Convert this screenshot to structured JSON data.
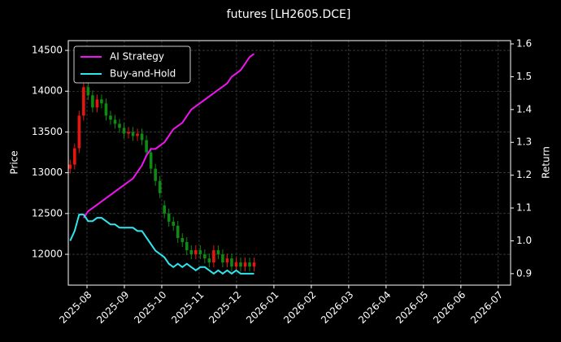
{
  "chart_data": {
    "type": "candlestick",
    "title": "futures [LH2605.DCE]",
    "ylabel": "Price",
    "y2label": "Return",
    "x": [
      -0.45,
      -0.33,
      -0.21,
      -0.09,
      0.03,
      0.15,
      0.27,
      0.39,
      0.51,
      0.63,
      0.75,
      0.87,
      0.99,
      1.11,
      1.23,
      1.35,
      1.47,
      1.59,
      1.71,
      1.83,
      1.95,
      2.07,
      2.19,
      2.31,
      2.43,
      2.55,
      2.67,
      2.79,
      2.91,
      3.03,
      3.15,
      3.27,
      3.39,
      3.51,
      3.63,
      3.75,
      3.87,
      3.99,
      4.11,
      4.23,
      4.35,
      4.47
    ],
    "open": [
      13050,
      13100,
      13300,
      13700,
      14050,
      13950,
      13800,
      13900,
      13850,
      13700,
      13650,
      13600,
      13550,
      13480,
      13500,
      13450,
      13480,
      13400,
      13250,
      13050,
      12900,
      12600,
      12500,
      12400,
      12350,
      12200,
      12150,
      12050,
      12000,
      12050,
      12000,
      11950,
      11900,
      12050,
      12000,
      11900,
      11950,
      11850,
      11900,
      11850,
      11900,
      11850
    ],
    "high": [
      13160,
      13360,
      13760,
      14110,
      14110,
      14010,
      13960,
      13960,
      13910,
      13760,
      13710,
      13660,
      13610,
      13560,
      13560,
      13540,
      13540,
      13460,
      13310,
      13110,
      12960,
      12660,
      12560,
      12460,
      12410,
      12260,
      12210,
      12110,
      12110,
      12110,
      12060,
      12010,
      12110,
      12110,
      12060,
      12010,
      12010,
      11960,
      11960,
      11960,
      11960,
      11960
    ],
    "low": [
      12990,
      13040,
      13240,
      13640,
      13890,
      13740,
      13740,
      13790,
      13640,
      13590,
      13540,
      13490,
      13420,
      13420,
      13390,
      13390,
      13340,
      13190,
      12990,
      12840,
      12690,
      12440,
      12340,
      12290,
      12140,
      12090,
      11990,
      11940,
      11940,
      11940,
      11890,
      11840,
      11840,
      11940,
      11840,
      11840,
      11790,
      11790,
      11790,
      11790,
      11790,
      11790
    ],
    "close": [
      13100,
      13300,
      13700,
      14050,
      13950,
      13800,
      13900,
      13850,
      13700,
      13650,
      13600,
      13550,
      13480,
      13500,
      13450,
      13480,
      13400,
      13250,
      13050,
      12900,
      12750,
      12500,
      12400,
      12350,
      12200,
      12150,
      12050,
      12000,
      12050,
      12000,
      11950,
      11900,
      12050,
      12000,
      11900,
      11950,
      11850,
      11900,
      11850,
      11900,
      11850,
      11900
    ],
    "up_color": "#e8150f",
    "down_color": "#0f8a12",
    "series": [
      {
        "name": "AI Strategy",
        "color": "#f014f0",
        "axis": "y2",
        "values": [
          null,
          null,
          null,
          1.07,
          1.09,
          1.1,
          1.11,
          1.12,
          1.13,
          1.14,
          1.15,
          1.16,
          1.17,
          1.18,
          1.19,
          1.21,
          1.23,
          1.26,
          1.28,
          1.28,
          1.29,
          1.3,
          1.32,
          1.34,
          1.35,
          1.36,
          1.38,
          1.4,
          1.41,
          1.42,
          1.43,
          1.44,
          1.45,
          1.46,
          1.47,
          1.48,
          1.5,
          1.51,
          1.52,
          1.54,
          1.56,
          1.57
        ]
      },
      {
        "name": "Buy-and-Hold",
        "color": "#2ee6f0",
        "axis": "y2",
        "values": [
          1.0,
          1.03,
          1.08,
          1.08,
          1.06,
          1.06,
          1.07,
          1.07,
          1.06,
          1.05,
          1.05,
          1.04,
          1.04,
          1.04,
          1.04,
          1.03,
          1.03,
          1.01,
          0.99,
          0.97,
          0.96,
          0.95,
          0.93,
          0.92,
          0.93,
          0.92,
          0.93,
          0.92,
          0.91,
          0.92,
          0.92,
          0.91,
          0.9,
          0.91,
          0.9,
          0.91,
          0.9,
          0.91,
          0.9,
          0.9,
          0.9,
          0.9
        ]
      }
    ],
    "xlim": [
      -0.5,
      11.33
    ],
    "xticks": [
      {
        "value": 0,
        "label": "2025-08"
      },
      {
        "value": 1,
        "label": "2025-09"
      },
      {
        "value": 2,
        "label": "2025-10"
      },
      {
        "value": 3,
        "label": "2025-11"
      },
      {
        "value": 4,
        "label": "2025-12"
      },
      {
        "value": 5,
        "label": "2026-01"
      },
      {
        "value": 6,
        "label": "2026-02"
      },
      {
        "value": 7,
        "label": "2026-03"
      },
      {
        "value": 8,
        "label": "2026-04"
      },
      {
        "value": 9,
        "label": "2026-05"
      },
      {
        "value": 10,
        "label": "2026-06"
      },
      {
        "value": 11,
        "label": "2026-07"
      }
    ],
    "ylim": [
      11622,
      14620
    ],
    "yticks": [
      12000,
      12500,
      13000,
      13500,
      14000,
      14500
    ],
    "y2lim": [
      0.865,
      1.61
    ],
    "y2ticks": [
      0.9,
      {
        "value": 1,
        "label": "1.0"
      },
      1.1,
      1.2,
      1.3,
      1.4,
      1.5,
      1.6
    ],
    "grid": true,
    "legend": "upper left"
  }
}
